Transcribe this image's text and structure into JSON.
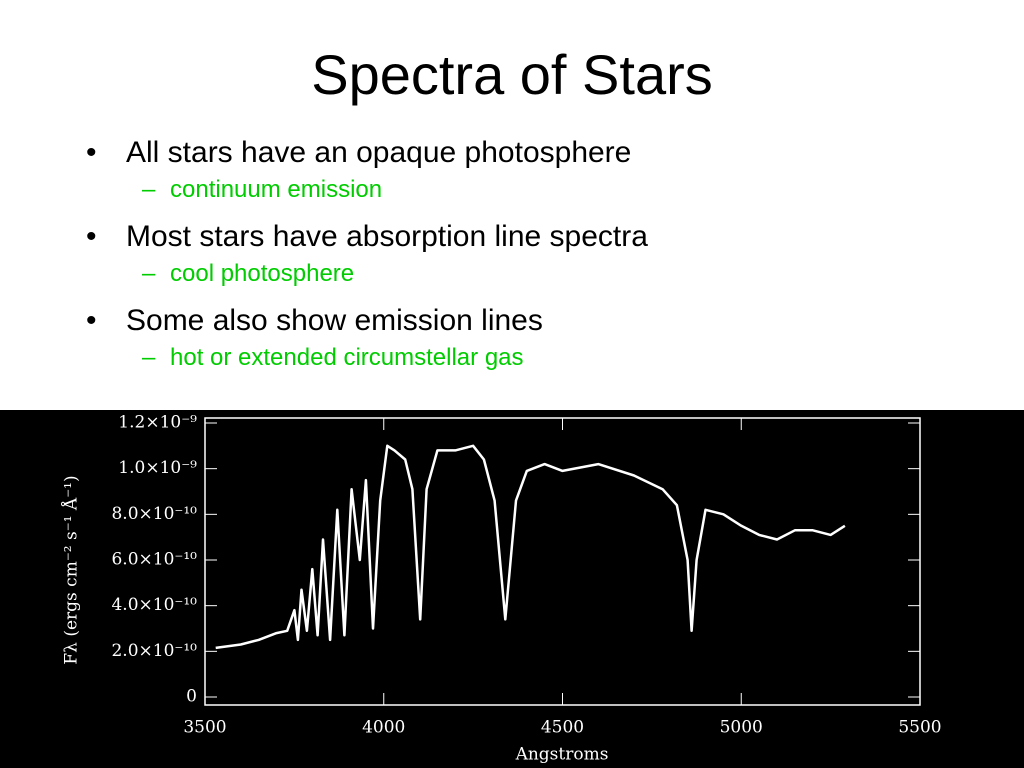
{
  "header": {
    "title": "Spectra of Stars"
  },
  "bullets": [
    {
      "text": "All stars have an opaque photosphere",
      "sub": [
        "continuum emission"
      ]
    },
    {
      "text": "Most stars have absorption line spectra",
      "sub": [
        "cool photosphere"
      ]
    },
    {
      "text": "Some also show emission lines",
      "sub": [
        "hot or extended circumstellar gas"
      ]
    }
  ],
  "chart_data": {
    "type": "line",
    "x_label": "Angstroms",
    "y_label": "Fλ (ergs cm⁻² s⁻¹ Å⁻¹)",
    "xlim": [
      3500,
      5500
    ],
    "ylim": [
      0,
      1.2e-09
    ],
    "xticks": [
      3500,
      4000,
      4500,
      5000,
      5500
    ],
    "yticks": [
      {
        "value": 0,
        "label": "0"
      },
      {
        "value": 2e-10,
        "label": "2.0×10⁻¹⁰"
      },
      {
        "value": 4e-10,
        "label": "4.0×10⁻¹⁰"
      },
      {
        "value": 6e-10,
        "label": "6.0×10⁻¹⁰"
      },
      {
        "value": 8e-10,
        "label": "8.0×10⁻¹⁰"
      },
      {
        "value": 1e-09,
        "label": "1.0×10⁻⁹"
      },
      {
        "value": 1.2e-09,
        "label": "1.2×10⁻⁹"
      }
    ],
    "color": "#ffffff",
    "x": [
      3530,
      3600,
      3650,
      3700,
      3730,
      3750,
      3760,
      3770,
      3785,
      3800,
      3815,
      3830,
      3850,
      3870,
      3890,
      3910,
      3933,
      3950,
      3970,
      3990,
      4010,
      4030,
      4060,
      4080,
      4102,
      4120,
      4150,
      4200,
      4250,
      4280,
      4310,
      4340,
      4370,
      4400,
      4450,
      4500,
      4600,
      4700,
      4780,
      4820,
      4850,
      4861,
      4875,
      4900,
      4950,
      5000,
      5050,
      5100,
      5150,
      5200,
      5250,
      5290
    ],
    "values": [
      2.15e-10,
      2.3e-10,
      2.5e-10,
      2.8e-10,
      2.9e-10,
      3.8e-10,
      2.5e-10,
      4.7e-10,
      2.9e-10,
      5.6e-10,
      2.7e-10,
      6.9e-10,
      2.5e-10,
      8.2e-10,
      2.7e-10,
      9.1e-10,
      6e-10,
      9.5e-10,
      3e-10,
      8.6e-10,
      1.1e-09,
      1.08e-09,
      1.04e-09,
      9.1e-10,
      3.4e-10,
      9.1e-10,
      1.08e-09,
      1.08e-09,
      1.1e-09,
      1.04e-09,
      8.6e-10,
      3.4e-10,
      8.6e-10,
      9.9e-10,
      1.02e-09,
      9.9e-10,
      1.02e-09,
      9.7e-10,
      9.1e-10,
      8.4e-10,
      6e-10,
      2.9e-10,
      6e-10,
      8.2e-10,
      8e-10,
      7.5e-10,
      7.1e-10,
      6.9e-10,
      7.3e-10,
      7.3e-10,
      7.1e-10,
      7.5e-10
    ]
  }
}
